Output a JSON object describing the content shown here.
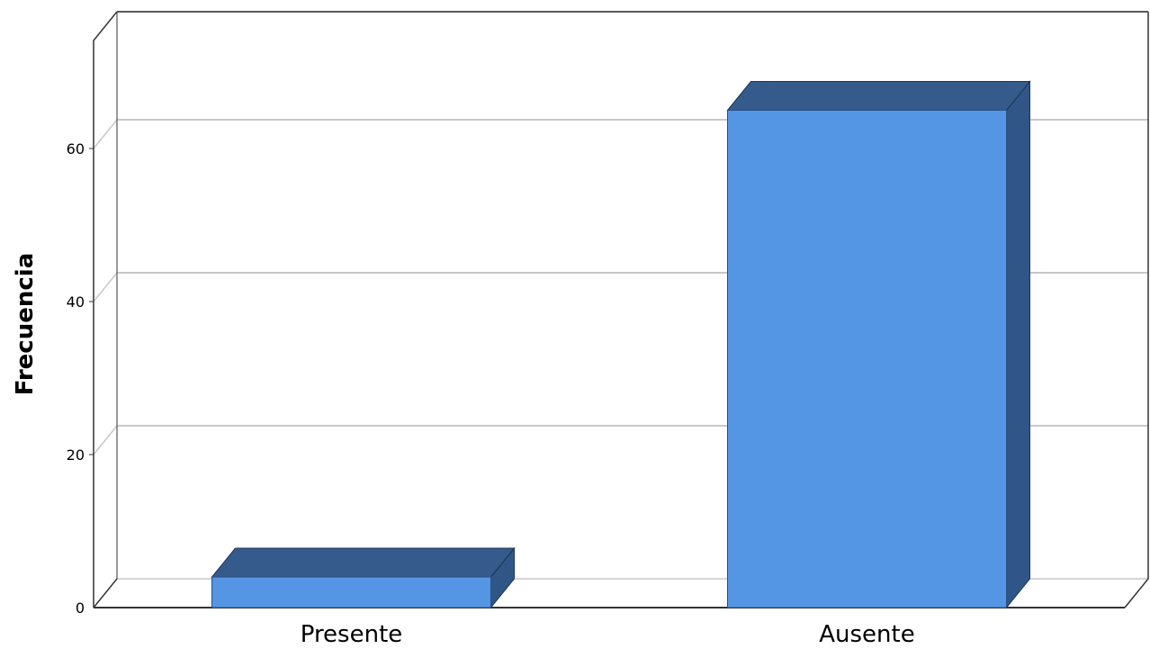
{
  "chart_data": {
    "type": "bar",
    "title": "",
    "xlabel": "",
    "ylabel": "Frecuencia",
    "categories": [
      "Presente",
      "Ausente"
    ],
    "values": [
      4,
      65
    ],
    "ylim": [
      0,
      75
    ],
    "yticks": [
      "0",
      "20",
      "40",
      "60"
    ],
    "grid": true,
    "legend": "none",
    "three_d": true,
    "colors": {
      "bar_front": "#5596e4",
      "bar_top": "#355b8c",
      "bar_side": "#2f5686",
      "grid": "#c8c8c8",
      "axis": "#333333"
    }
  }
}
